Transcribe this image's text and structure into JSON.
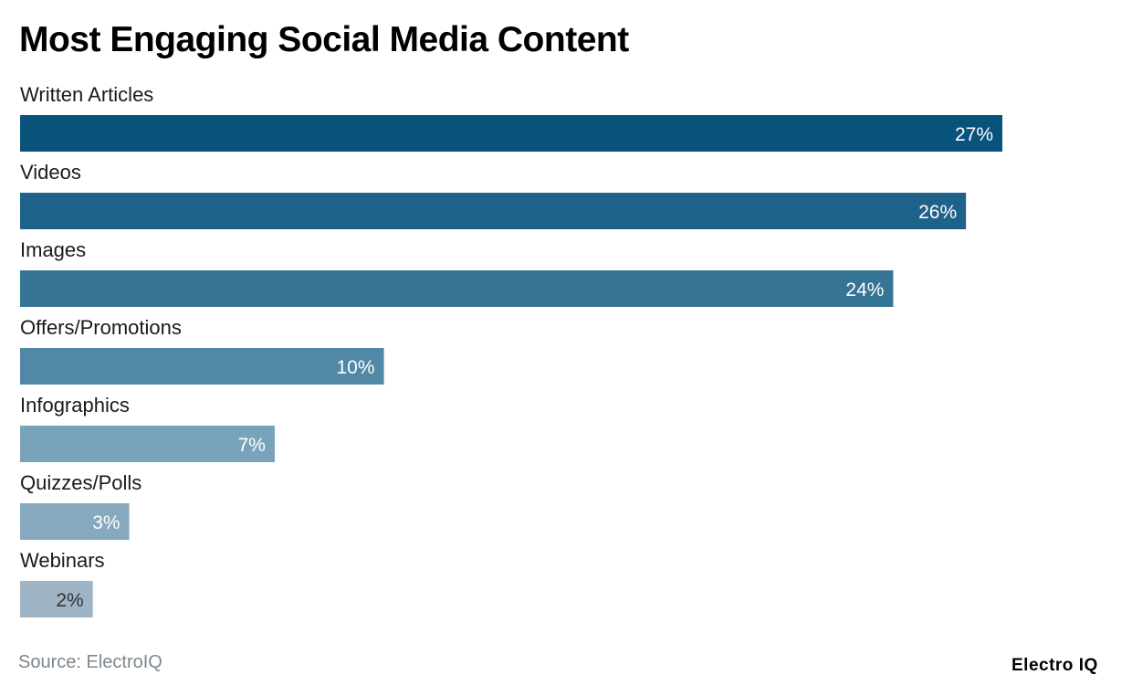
{
  "chart_data": {
    "type": "bar",
    "orientation": "horizontal",
    "title": "Most Engaging Social Media Content",
    "categories": [
      "Written Articles",
      "Videos",
      "Images",
      "Offers/Promotions",
      "Infographics",
      "Quizzes/Polls",
      "Webinars"
    ],
    "values": [
      27,
      26,
      24,
      10,
      7,
      3,
      2
    ],
    "value_labels": [
      "27%",
      "26%",
      "24%",
      "10%",
      "7%",
      "3%",
      "2%"
    ],
    "unit": "%",
    "colors": [
      "#08527c",
      "#1e6289",
      "#367496",
      "#5088a6",
      "#79a3bb",
      "#87a9bd",
      "#9fb5c5"
    ],
    "label_colors": [
      "#ffffff",
      "#ffffff",
      "#ffffff",
      "#ffffff",
      "#ffffff",
      "#ffffff",
      "#333333"
    ],
    "xlim": [
      0,
      27
    ],
    "grid": false,
    "legend": "none"
  },
  "footer": {
    "source": "Source: ElectroIQ",
    "logo": "Electro IQ"
  }
}
